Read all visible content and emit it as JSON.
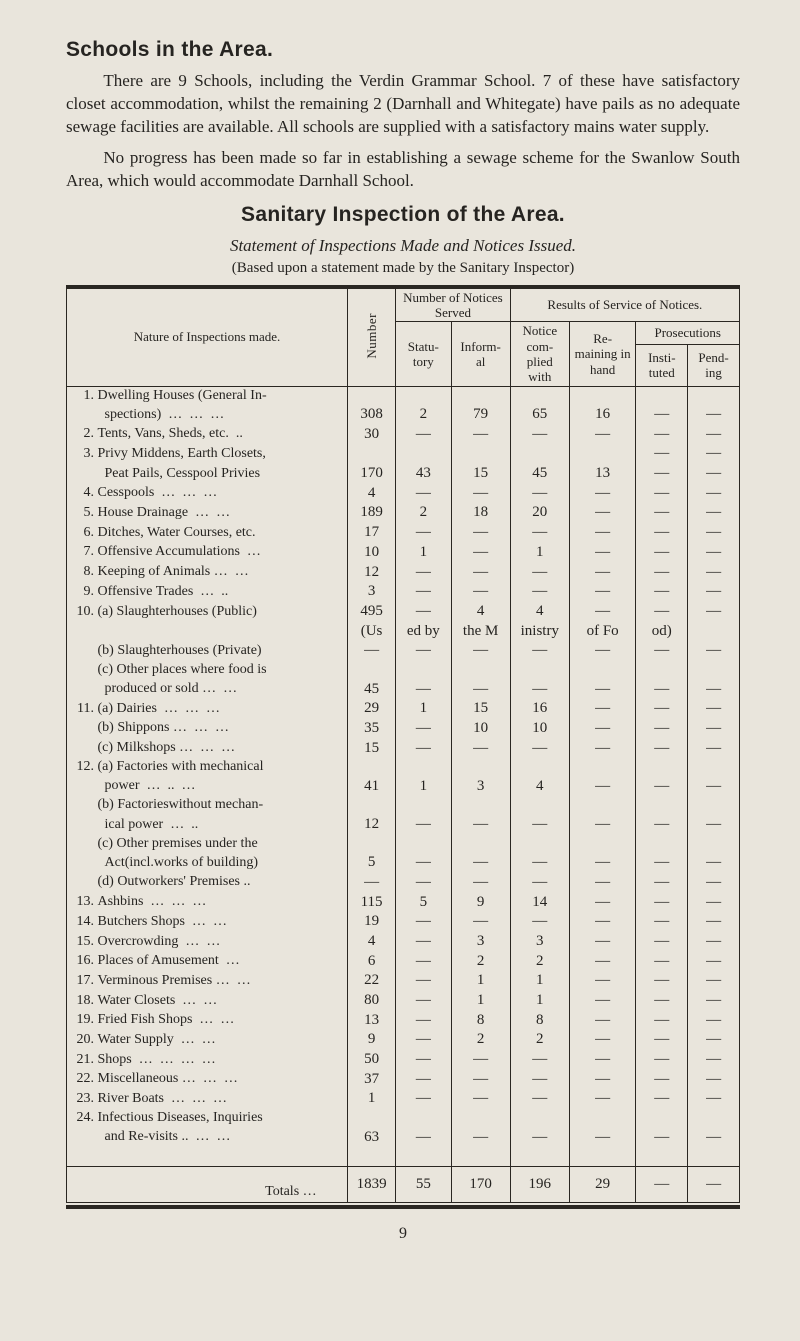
{
  "section1": {
    "heading": "Schools in the Area.",
    "para1_html": "There are 9 Schools, including the Verdin Grammar School. 7 of these have satisfactory closet accommodation, whilst the remaining 2 (Darnhall and Whitegate) have pails as no adequate sewage facilities are available. All schools are supplied with a satisfactory mains water supply.",
    "para2": "No progress has been made so far in establishing a sewage scheme for the Swanlow South Area, which would accommodate Darnhall School."
  },
  "section2": {
    "heading": "Sanitary Inspection of the Area.",
    "subtitle": "Statement of Inspections Made and Notices Issued.",
    "note": "(Based upon a statement made by the Sanitary Inspector)"
  },
  "headers": {
    "nature": "Nature of Inspections made.",
    "number": "Number",
    "notices_served": "Number of Notices Served",
    "statutory": "Statu- tory",
    "informal": "Inform- al",
    "results": "Results of Service of Notices.",
    "notice_complied": "Notice com- plied with",
    "remaining": "Re- maining in hand",
    "prosecutions": "Prosecutions",
    "instituted": "Insti- tuted",
    "pending": "Pend- ing"
  },
  "rows": [
    {
      "no": "1.",
      "label": "Dwelling Houses (General In-\n    spections)    …     …     …",
      "cells": [
        "308",
        "2",
        "79",
        "65",
        "16",
        "—",
        "—"
      ]
    },
    {
      "no": "2.",
      "label": "Tents, Vans, Sheds, etc.   ..",
      "cells": [
        "30",
        "—",
        "—",
        "—",
        "—",
        "—",
        "—"
      ]
    },
    {
      "no": "3.",
      "label": "Privy Middens, Earth Closets,\n    Peat Pails, Cesspool Privies",
      "cells": [
        "170",
        "43",
        "15",
        "45",
        "13",
        "—",
        "—"
      ],
      "pre_cells": [
        "",
        "",
        "",
        "",
        "",
        "—",
        "—"
      ]
    },
    {
      "no": "4.",
      "label": "Cesspools     …     …     …",
      "cells": [
        "4",
        "—",
        "—",
        "—",
        "—",
        "—",
        "—"
      ]
    },
    {
      "no": "5.",
      "label": "House Drainage      …     …",
      "cells": [
        "189",
        "2",
        "18",
        "20",
        "—",
        "—",
        "—"
      ]
    },
    {
      "no": "6.",
      "label": "Ditches, Water Courses, etc.",
      "cells": [
        "17",
        "—",
        "—",
        "—",
        "—",
        "—",
        "—"
      ]
    },
    {
      "no": "7.",
      "label": "Offensive Accumulations   …",
      "cells": [
        "10",
        "1",
        "—",
        "1",
        "—",
        "—",
        "—"
      ]
    },
    {
      "no": "8.",
      "label": "Keeping of Animals …    …",
      "cells": [
        "12",
        "—",
        "—",
        "—",
        "—",
        "—",
        "—"
      ]
    },
    {
      "no": "9.",
      "label": "Offensive Trades      …    ..",
      "cells": [
        "3",
        "—",
        "—",
        "—",
        "—",
        "—",
        "—"
      ]
    },
    {
      "no": "10.",
      "label": "(a) Slaughterhouses (Public)",
      "cells": [
        "495",
        "—",
        "4",
        "4",
        "—",
        "—",
        "—"
      ]
    },
    {
      "no": "",
      "label": "",
      "cells": [
        "(Us",
        "ed by",
        "the M",
        "inistry",
        "of Fo",
        "od)",
        ""
      ]
    },
    {
      "no": "",
      "label": "(b) Slaughterhouses (Private)",
      "cells": [
        "—",
        "—",
        "—",
        "—",
        "—",
        "—",
        "—"
      ]
    },
    {
      "no": "",
      "label": "(c) Other places where food is\n    produced or sold …    …",
      "cells": [
        "45",
        "—",
        "—",
        "—",
        "—",
        "—",
        "—"
      ]
    },
    {
      "no": "11.",
      "label": "(a) Dairies      …     …    …",
      "cells": [
        "29",
        "1",
        "15",
        "16",
        "—",
        "—",
        "—"
      ]
    },
    {
      "no": "",
      "label": "(b) Shippons …     …     …",
      "cells": [
        "35",
        "—",
        "10",
        "10",
        "—",
        "—",
        "—"
      ]
    },
    {
      "no": "",
      "label": "(c) Milkshops …    …     …",
      "cells": [
        "15",
        "—",
        "—",
        "—",
        "—",
        "—",
        "—"
      ]
    },
    {
      "no": "12.",
      "label": "(a) Factories with mechanical\n    power     …    ..     …",
      "cells": [
        "41",
        "1",
        "3",
        "4",
        "—",
        "—",
        "—"
      ]
    },
    {
      "no": "",
      "label": "(b) Factorieswithout mechan-\n    ical power      …     ..",
      "cells": [
        "12",
        "—",
        "—",
        "—",
        "—",
        "—",
        "—"
      ]
    },
    {
      "no": "",
      "label": "(c) Other premises under the\n    Act(incl.works of building)",
      "cells": [
        "5",
        "—",
        "—",
        "—",
        "—",
        "—",
        "—"
      ]
    },
    {
      "no": "",
      "label": "(d) Outworkers' Premises ..",
      "cells": [
        "—",
        "—",
        "—",
        "—",
        "—",
        "—",
        "—"
      ]
    },
    {
      "no": "13.",
      "label": "Ashbins       …     …     …",
      "cells": [
        "115",
        "5",
        "9",
        "14",
        "—",
        "—",
        "—"
      ]
    },
    {
      "no": "14.",
      "label": "Butchers Shops      …     …",
      "cells": [
        "19",
        "—",
        "—",
        "—",
        "—",
        "—",
        "—"
      ]
    },
    {
      "no": "15.",
      "label": "Overcrowding       …     …",
      "cells": [
        "4",
        "—",
        "3",
        "3",
        "—",
        "—",
        "—"
      ]
    },
    {
      "no": "16.",
      "label": "Places of Amusement     …",
      "cells": [
        "6",
        "—",
        "2",
        "2",
        "—",
        "—",
        "—"
      ]
    },
    {
      "no": "17.",
      "label": "Verminous Premises …    …",
      "cells": [
        "22",
        "—",
        "1",
        "1",
        "—",
        "—",
        "—"
      ]
    },
    {
      "no": "18.",
      "label": "Water Closets       …    …",
      "cells": [
        "80",
        "—",
        "1",
        "1",
        "—",
        "—",
        "—"
      ]
    },
    {
      "no": "19.",
      "label": "Fried Fish Shops    …    …",
      "cells": [
        "13",
        "—",
        "8",
        "8",
        "—",
        "—",
        "—"
      ]
    },
    {
      "no": "20.",
      "label": "Water Supply       …     …",
      "cells": [
        "9",
        "—",
        "2",
        "2",
        "—",
        "—",
        "—"
      ]
    },
    {
      "no": "21.",
      "label": "Shops  …    …     …     …",
      "cells": [
        "50",
        "—",
        "—",
        "—",
        "—",
        "—",
        "—"
      ]
    },
    {
      "no": "22.",
      "label": "Miscellaneous …    …     …",
      "cells": [
        "37",
        "—",
        "—",
        "—",
        "—",
        "—",
        "—"
      ]
    },
    {
      "no": "23.",
      "label": "River Boats    …    …     …",
      "cells": [
        "1",
        "—",
        "—",
        "—",
        "—",
        "—",
        "—"
      ]
    },
    {
      "no": "24.",
      "label": "Infectious Diseases, Inquiries\n    and Re-visits ..   …     …",
      "cells": [
        "63",
        "—",
        "—",
        "—",
        "—",
        "—",
        "—"
      ]
    }
  ],
  "totals": {
    "label": "Totals    …",
    "cells": [
      "1839",
      "55",
      "170",
      "196",
      "29",
      "—",
      "—"
    ]
  },
  "pagenum": "9",
  "style": {
    "bg": "#e9e5dc",
    "fg": "#262421",
    "rule": "#2a2722",
    "body_font": "Georgia, 'Times New Roman', serif",
    "heading_font": "Arial, Helvetica, sans-serif"
  }
}
